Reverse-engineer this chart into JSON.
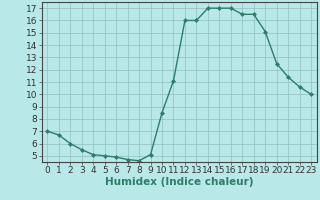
{
  "x": [
    0,
    1,
    2,
    3,
    4,
    5,
    6,
    7,
    8,
    9,
    10,
    11,
    12,
    13,
    14,
    15,
    16,
    17,
    18,
    19,
    20,
    21,
    22,
    23
  ],
  "y": [
    7,
    6.7,
    6,
    5.5,
    5.1,
    5.0,
    4.9,
    4.7,
    4.6,
    5.1,
    8.5,
    11.1,
    16.0,
    16.0,
    17.0,
    17.0,
    17.0,
    16.5,
    16.5,
    15.1,
    12.5,
    11.4,
    10.6,
    10.0
  ],
  "xlabel": "Humidex (Indice chaleur)",
  "ylim": [
    4.5,
    17.5
  ],
  "xlim": [
    -0.5,
    23.5
  ],
  "yticks": [
    5,
    6,
    7,
    8,
    9,
    10,
    11,
    12,
    13,
    14,
    15,
    16,
    17
  ],
  "xticks": [
    0,
    1,
    2,
    3,
    4,
    5,
    6,
    7,
    8,
    9,
    10,
    11,
    12,
    13,
    14,
    15,
    16,
    17,
    18,
    19,
    20,
    21,
    22,
    23
  ],
  "line_color": "#2e7d6b",
  "bg_color": "#b8e8e8",
  "grid_color": "#8fbfbf",
  "xlabel_fontsize": 7.5,
  "tick_fontsize": 6.5
}
